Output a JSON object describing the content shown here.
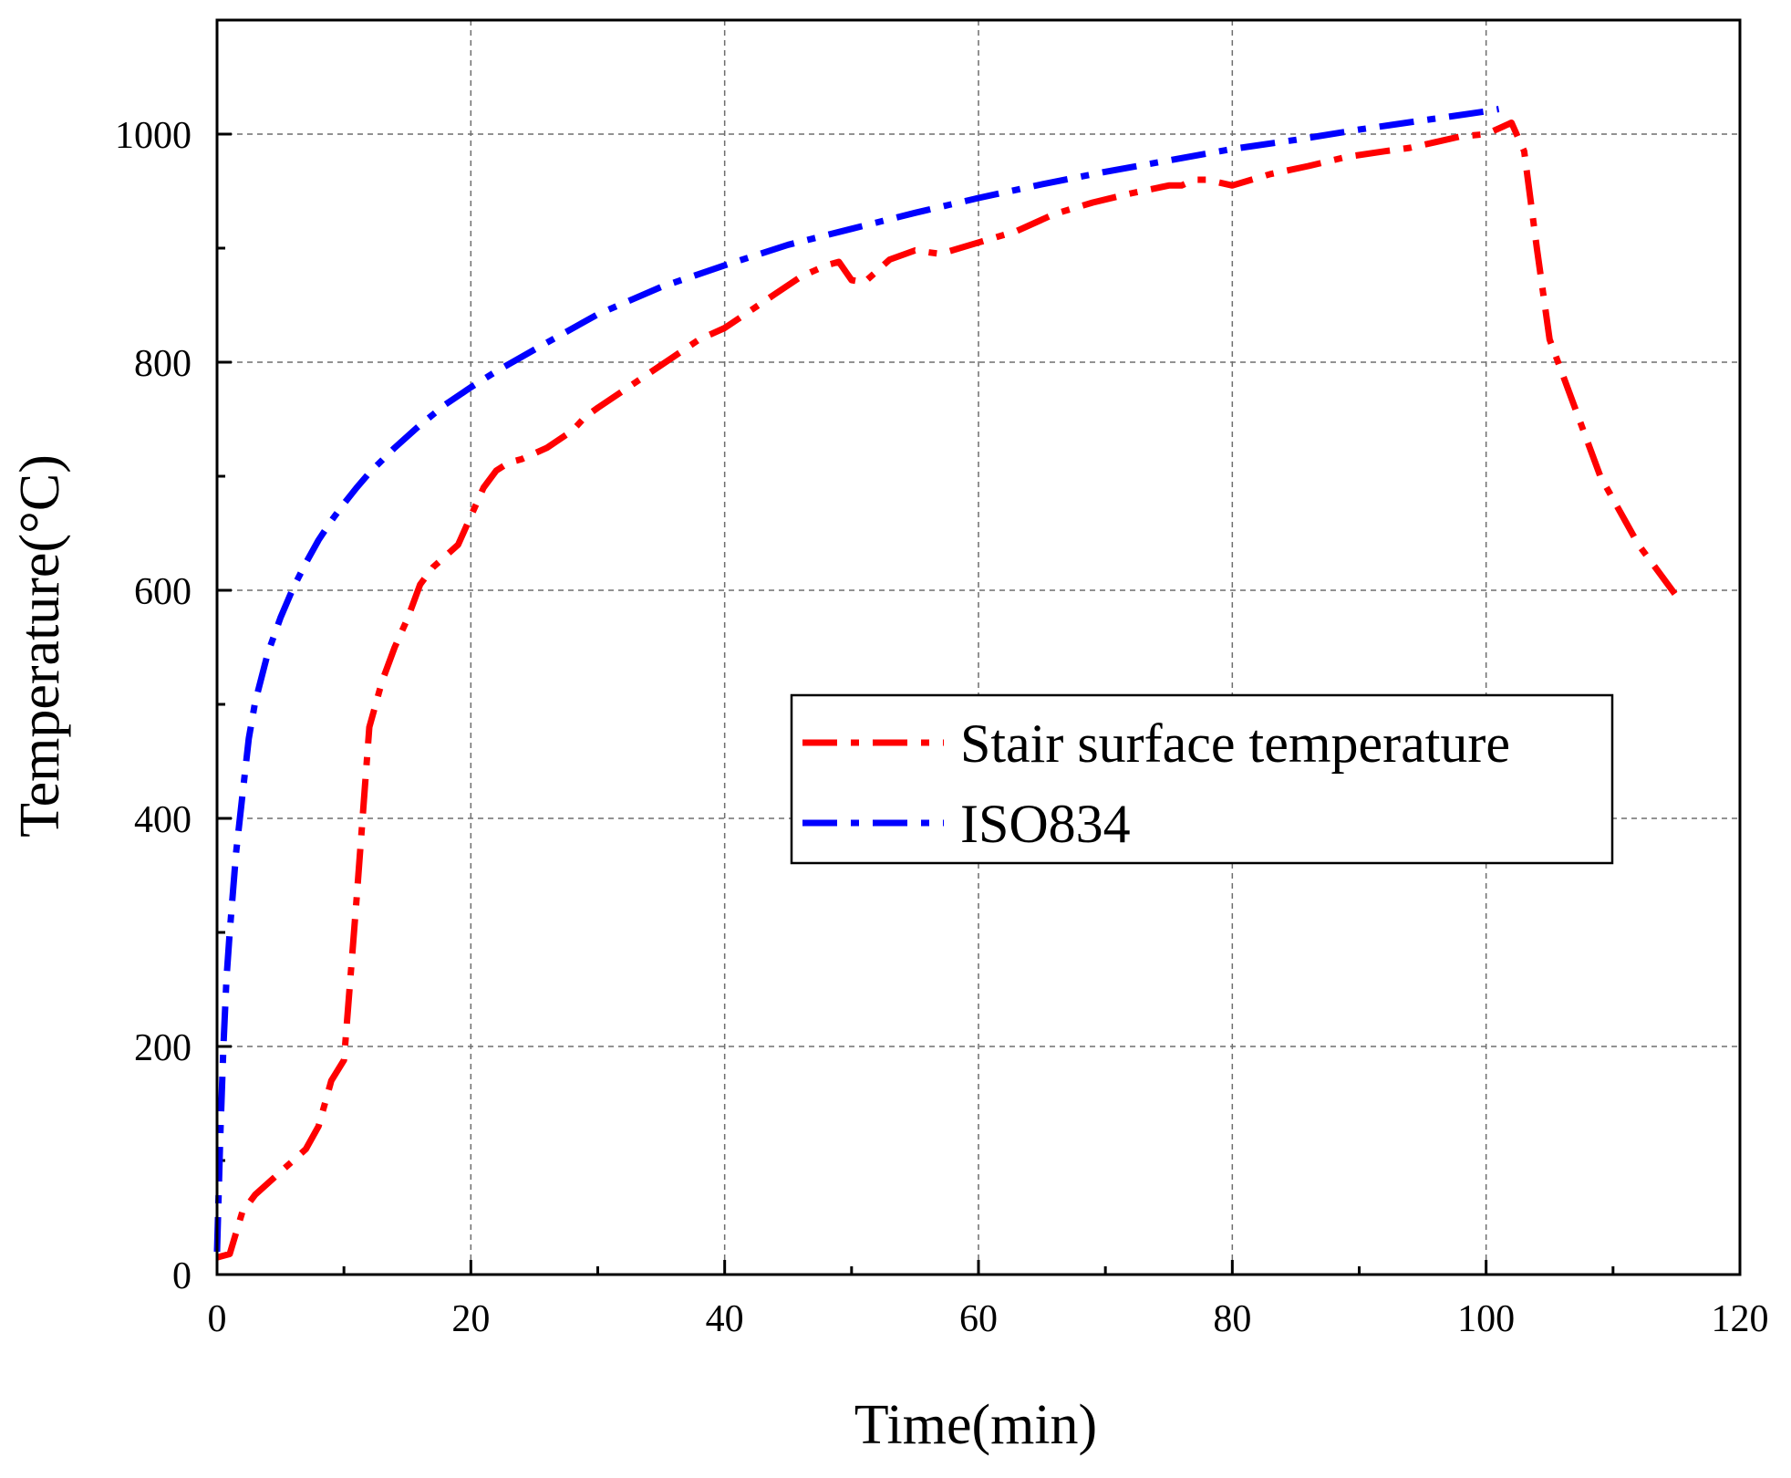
{
  "chart_data": {
    "type": "line",
    "title": "",
    "xlabel": "Time(min)",
    "ylabel": "Temperature(°C)",
    "xlim": [
      0,
      120
    ],
    "ylim": [
      0,
      1100
    ],
    "xticks": [
      0,
      20,
      40,
      60,
      80,
      100,
      120
    ],
    "xtick_labels": [
      "0",
      "20",
      "40",
      "60",
      "80",
      "100",
      "120"
    ],
    "yticks": [
      0,
      200,
      400,
      600,
      800,
      1000
    ],
    "ytick_labels": [
      "0",
      "200",
      "400",
      "600",
      "800",
      "1000"
    ],
    "grid": true,
    "legend_position": "center-right",
    "series": [
      {
        "name": "Stair surface temperature",
        "color": "#ff0000",
        "line_style": "dash-dot",
        "x": [
          0,
          1,
          2,
          3,
          5,
          7,
          8,
          9,
          10,
          11,
          12,
          13,
          14,
          15,
          16,
          17,
          18,
          19,
          20,
          21,
          22,
          23,
          24,
          26,
          28,
          29,
          30,
          32,
          34,
          36,
          38,
          40,
          42,
          44,
          46,
          48,
          49,
          50,
          51,
          52,
          53,
          55,
          57,
          60,
          63,
          66,
          69,
          72,
          75,
          76,
          77,
          78,
          80,
          83,
          86,
          89,
          92,
          94,
          96,
          98,
          100,
          101,
          102,
          103,
          104,
          105,
          106,
          107,
          108,
          109,
          110,
          111,
          112,
          113,
          114,
          115
        ],
        "values": [
          15,
          18,
          55,
          70,
          90,
          110,
          130,
          170,
          188,
          330,
          480,
          520,
          550,
          575,
          605,
          620,
          630,
          640,
          665,
          690,
          705,
          712,
          715,
          725,
          740,
          752,
          760,
          775,
          790,
          805,
          820,
          830,
          845,
          860,
          875,
          885,
          888,
          872,
          870,
          880,
          890,
          898,
          895,
          905,
          915,
          930,
          940,
          948,
          955,
          955,
          960,
          960,
          955,
          965,
          972,
          980,
          985,
          988,
          993,
          998,
          1000,
          1005,
          1010,
          985,
          900,
          820,
          790,
          760,
          730,
          700,
          680,
          660,
          640,
          625,
          610,
          595
        ]
      },
      {
        "name": "ISO834",
        "color": "#0000ff",
        "line_style": "dash-dot",
        "x": [
          0,
          0.25,
          0.5,
          0.75,
          1,
          1.5,
          2,
          2.5,
          3,
          4,
          5,
          6,
          7,
          8,
          9,
          10,
          11,
          12,
          14,
          16,
          18,
          20,
          22,
          25,
          30,
          35,
          40,
          45,
          50,
          55,
          60,
          65,
          70,
          75,
          80,
          85,
          90,
          95,
          100,
          101
        ],
        "values": [
          20,
          120,
          200,
          260,
          300,
          370,
          420,
          470,
          502,
          545,
          576,
          602,
          624,
          644,
          661,
          676,
          690,
          703,
          725,
          745,
          763,
          778,
          792,
          811,
          842,
          866,
          885,
          903,
          917,
          931,
          944,
          956,
          967,
          977,
          987,
          995,
          1004,
          1012,
          1020,
          1022
        ]
      }
    ]
  }
}
